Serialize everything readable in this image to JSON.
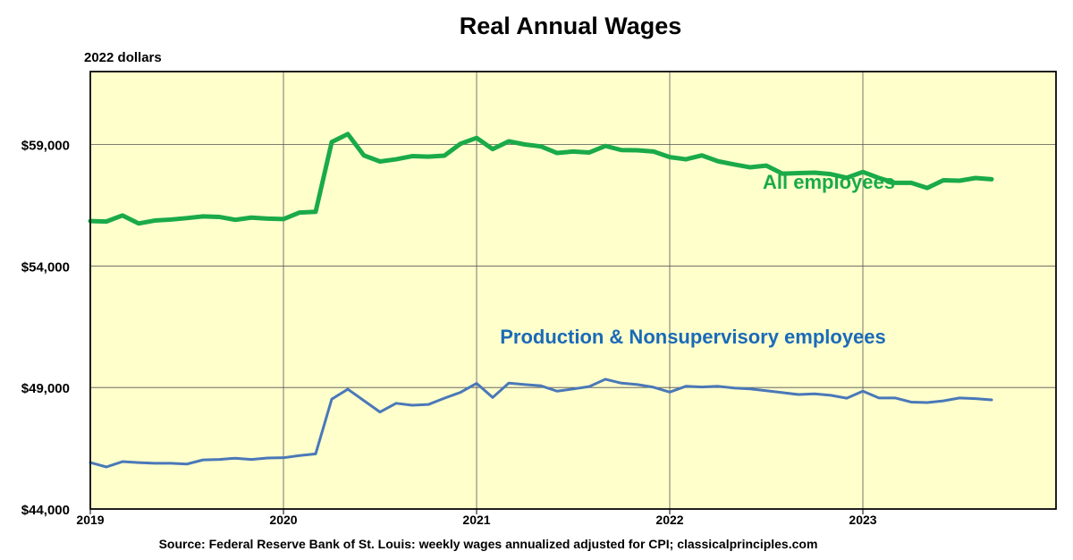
{
  "colors": {
    "plot_bg": "#ffffcc",
    "grid": "#555555",
    "all_employees": "#1aaa4a",
    "production": "#4a78b8",
    "label_all": "#1aaa4a",
    "label_production": "#1a6ab8"
  },
  "chart_data": {
    "type": "line",
    "title": "Real Annual Wages",
    "ylabel": "2022 dollars",
    "xlabel": "",
    "ylim": [
      44000,
      62000
    ],
    "xlim": [
      2019.0,
      2024.0
    ],
    "yticks": [
      {
        "value": 44000,
        "label": "$44,000"
      },
      {
        "value": 49000,
        "label": "$49,000"
      },
      {
        "value": 54000,
        "label": "$54,000"
      },
      {
        "value": 59000,
        "label": "$59,000"
      }
    ],
    "xticks": [
      {
        "value": 2019,
        "label": "2019"
      },
      {
        "value": 2020,
        "label": "2020"
      },
      {
        "value": 2021,
        "label": "2021"
      },
      {
        "value": 2022,
        "label": "2022"
      },
      {
        "value": 2023,
        "label": "2023"
      }
    ],
    "grid": true,
    "source": "Source: Federal Reserve Bank of St. Louis: weekly wages annualized adjusted for CPI; classicalprinciples.com",
    "series": [
      {
        "name": "All employees",
        "label": "All employees",
        "color": "#1aaa4a",
        "width": 5,
        "start": 2019.0,
        "step": 0.0833333,
        "values": [
          55850,
          55830,
          56080,
          55750,
          55870,
          55910,
          55970,
          56040,
          56020,
          55900,
          55990,
          55950,
          55930,
          56200,
          56230,
          59100,
          59430,
          58550,
          58300,
          58390,
          58520,
          58500,
          58540,
          59030,
          59270,
          58810,
          59130,
          59000,
          58920,
          58650,
          58710,
          58670,
          58940,
          58770,
          58760,
          58710,
          58480,
          58390,
          58550,
          58310,
          58180,
          58060,
          58130,
          57800,
          57820,
          57840,
          57780,
          57630,
          57870,
          57620,
          57420,
          57420,
          57210,
          57530,
          57510,
          57620,
          57570
        ]
      },
      {
        "name": "Production & Nonsupervisory employees",
        "label": "Production & Nonsupervisory employees",
        "color": "#4a78b8",
        "width": 3,
        "start": 2019.0,
        "step": 0.0833333,
        "values": [
          45910,
          45730,
          45950,
          45910,
          45880,
          45880,
          45850,
          46020,
          46040,
          46090,
          46040,
          46100,
          46110,
          46200,
          46270,
          48520,
          48930,
          48460,
          47990,
          48350,
          48270,
          48300,
          48560,
          48800,
          49170,
          48590,
          49180,
          49120,
          49070,
          48850,
          48940,
          49040,
          49340,
          49180,
          49120,
          49010,
          48810,
          49050,
          49020,
          49050,
          48980,
          48940,
          48870,
          48790,
          48710,
          48740,
          48680,
          48560,
          48850,
          48570,
          48570,
          48400,
          48380,
          48450,
          48570,
          48540,
          48490
        ]
      }
    ]
  }
}
